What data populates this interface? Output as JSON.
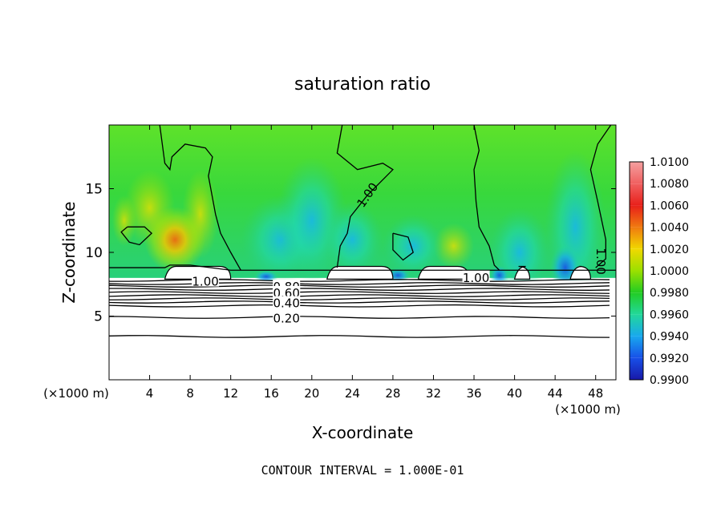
{
  "chart_data": {
    "type": "heatmap",
    "title": "saturation ratio",
    "xlabel": "X-coordinate",
    "ylabel": "Z-coordinate",
    "x_unit": "(×1000 m)",
    "y_unit": "(×1000 m)",
    "xlim": [
      0,
      50
    ],
    "ylim": [
      0,
      20
    ],
    "x_ticks": [
      4,
      8,
      12,
      16,
      20,
      24,
      28,
      32,
      36,
      40,
      44,
      48
    ],
    "y_ticks": [
      5,
      10,
      15
    ],
    "footnote": "CONTOUR INTERVAL = 1.000E-01",
    "colorbar": {
      "levels": [
        {
          "value": "1.0100",
          "color": "#f4a0a0"
        },
        {
          "value": "1.0080",
          "color": "#f06060"
        },
        {
          "value": "1.0060",
          "color": "#e8201a"
        },
        {
          "value": "1.0040",
          "color": "#f07a10"
        },
        {
          "value": "1.0020",
          "color": "#f0d800"
        },
        {
          "value": "1.0000",
          "color": "#9be000"
        },
        {
          "value": "0.9980",
          "color": "#22cc22"
        },
        {
          "value": "0.9960",
          "color": "#22d89a"
        },
        {
          "value": "0.9940",
          "color": "#18a8ee"
        },
        {
          "value": "0.9920",
          "color": "#1850e8"
        },
        {
          "value": "0.9900",
          "color": "#1818a8"
        }
      ],
      "bottom_color": "#6a1890"
    },
    "contour_labels": [
      {
        "text": "1.00",
        "x": 9.5,
        "y": 7.7
      },
      {
        "text": "1.00",
        "x": 25.5,
        "y": 14.5
      },
      {
        "text": "1.00",
        "x": 48.5,
        "y": 9.3
      },
      {
        "text": "1.00",
        "x": 36.2,
        "y": 8.0
      },
      {
        "text": "0.80",
        "x": 17.5,
        "y": 7.3
      },
      {
        "text": "0.60",
        "x": 17.5,
        "y": 6.8
      },
      {
        "text": "0.40",
        "x": 17.5,
        "y": 6.0
      },
      {
        "text": "0.20",
        "x": 17.5,
        "y": 4.8
      }
    ],
    "contour_lines_y": [
      3.4,
      4.9,
      5.8,
      6.1,
      6.35,
      6.6,
      6.85,
      7.1,
      7.35,
      7.55,
      7.8
    ]
  }
}
